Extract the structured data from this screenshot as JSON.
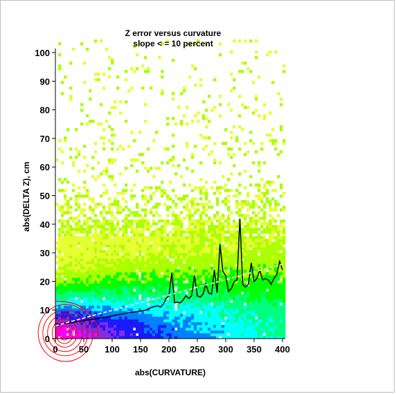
{
  "chart_data": {
    "type": "heatmap",
    "title": "Z error versus curvature",
    "subtitle": "slope < = 10 percent",
    "xlabel": "abs(CURVATURE)",
    "ylabel": "abs(DELTA Z), cm",
    "xlim": [
      0,
      400
    ],
    "ylim": [
      0,
      100
    ],
    "x_ticks": [
      0,
      50,
      100,
      150,
      200,
      250,
      300,
      350,
      400
    ],
    "y_ticks": [
      0,
      10,
      20,
      30,
      40,
      50,
      60,
      70,
      80,
      90,
      100
    ],
    "colormap": [
      "#ff00ff",
      "#8a2be2",
      "#1a1aff",
      "#0080ff",
      "#00ffff",
      "#00ff80",
      "#00ff00",
      "#aaff00",
      "#e6ff33"
    ],
    "contour_color": "#ff0000",
    "series": [
      {
        "name": "",
        "type": "line",
        "color": "#000000",
        "x": [
          0,
          10,
          20,
          30,
          40,
          50,
          60,
          70,
          80,
          90,
          100,
          110,
          120,
          130,
          140,
          150,
          160,
          170,
          180,
          185,
          190,
          195,
          200,
          205,
          210,
          215,
          220,
          225,
          230,
          235,
          240,
          245,
          250,
          255,
          260,
          265,
          270,
          275,
          280,
          285,
          290,
          295,
          300,
          305,
          310,
          315,
          320,
          325,
          330,
          335,
          340,
          345,
          350,
          355,
          360,
          365,
          370,
          375,
          380,
          385,
          390,
          395,
          400
        ],
        "y": [
          5,
          5.2,
          5.4,
          5.6,
          6,
          6.3,
          6.6,
          6.8,
          7.2,
          7.5,
          8,
          8.3,
          8.7,
          9,
          9.3,
          9.6,
          10,
          11,
          11.5,
          11,
          12,
          14,
          15,
          23,
          12.5,
          12.8,
          12.5,
          13.5,
          15,
          14,
          15,
          22,
          15,
          14.5,
          15.5,
          19,
          16,
          15.5,
          24,
          16,
          33,
          23.5,
          22,
          16.5,
          17.5,
          20,
          20.5,
          42,
          19,
          18,
          19,
          26.5,
          20,
          21,
          24,
          20.5,
          21,
          20.5,
          19,
          21,
          22.5,
          27,
          24
        ]
      },
      {
        "name": "",
        "type": "fit",
        "color": "#ffffff",
        "x": [
          0,
          400
        ],
        "y": [
          4.5,
          26
        ]
      }
    ],
    "grid": false,
    "legend": "none"
  }
}
